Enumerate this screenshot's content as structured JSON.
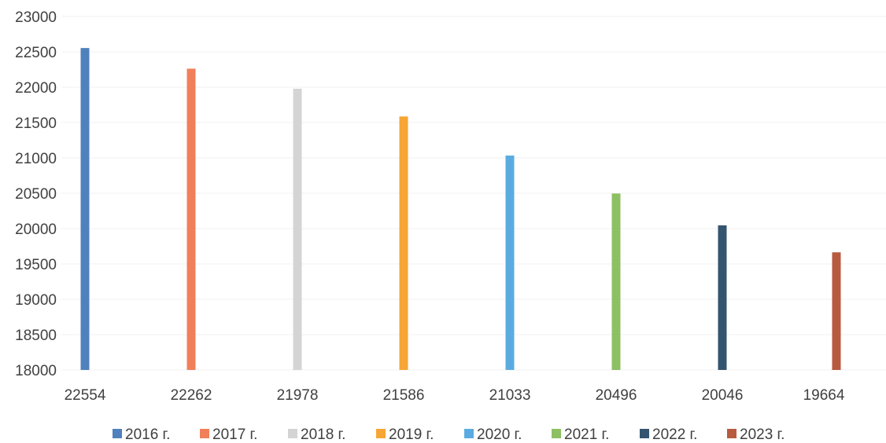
{
  "chart_data": {
    "type": "bar",
    "title": "",
    "xlabel": "",
    "ylabel": "",
    "ylim": [
      18000,
      23000
    ],
    "yticks": [
      "18000",
      "18500",
      "19000",
      "19500",
      "20000",
      "20500",
      "21000",
      "21500",
      "22000",
      "22500",
      "23000"
    ],
    "categories": [
      "22554",
      "22262",
      "21978",
      "21586",
      "21033",
      "20496",
      "20046",
      "19664"
    ],
    "series": [
      {
        "name": "2016 г.",
        "color": "#4f81bd",
        "values": [
          22554,
          null,
          null,
          null,
          null,
          null,
          null,
          null
        ]
      },
      {
        "name": "2017 г.",
        "color": "#f07f5a",
        "values": [
          null,
          22262,
          null,
          null,
          null,
          null,
          null,
          null
        ]
      },
      {
        "name": "2018 г.",
        "color": "#d4d4d4",
        "values": [
          null,
          null,
          21978,
          null,
          null,
          null,
          null,
          null
        ]
      },
      {
        "name": "2019 г.",
        "color": "#f7a535",
        "values": [
          null,
          null,
          null,
          21586,
          null,
          null,
          null,
          null
        ]
      },
      {
        "name": "2020 г.",
        "color": "#5aace0",
        "values": [
          null,
          null,
          null,
          null,
          21033,
          null,
          null,
          null
        ]
      },
      {
        "name": "2021 г.",
        "color": "#8cc063",
        "values": [
          null,
          null,
          null,
          null,
          null,
          20496,
          null,
          null
        ]
      },
      {
        "name": "2022 г.",
        "color": "#34556f",
        "values": [
          null,
          null,
          null,
          null,
          null,
          null,
          20046,
          null
        ]
      },
      {
        "name": "2023 г.",
        "color": "#b85a3f",
        "values": [
          null,
          null,
          null,
          null,
          null,
          null,
          null,
          19664
        ]
      }
    ],
    "grid": true,
    "legend_position": "bottom"
  }
}
